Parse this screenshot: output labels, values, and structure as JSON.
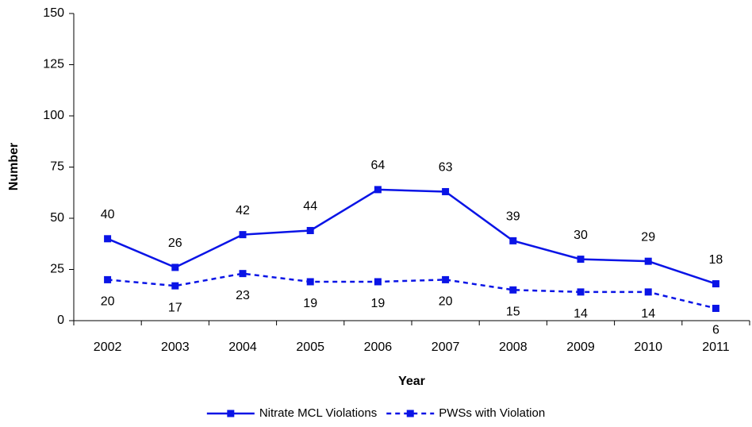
{
  "chart_data": {
    "type": "line",
    "x_label": "Year",
    "y_label": "Number",
    "categories": [
      "2002",
      "2003",
      "2004",
      "2005",
      "2006",
      "2007",
      "2008",
      "2009",
      "2010",
      "2011"
    ],
    "series": [
      {
        "name": "Nitrate MCL Violations",
        "color": "#0a14e6",
        "style": "solid",
        "label_position": "above",
        "values": [
          40,
          26,
          42,
          44,
          64,
          63,
          39,
          30,
          29,
          18
        ]
      },
      {
        "name": "PWSs with Violation",
        "color": "#0a14e6",
        "style": "dashed",
        "label_position": "below",
        "values": [
          20,
          17,
          23,
          19,
          19,
          20,
          15,
          14,
          14,
          6
        ]
      }
    ],
    "ylim": [
      0,
      150
    ],
    "yticks": [
      0,
      25,
      50,
      75,
      100,
      125,
      150
    ],
    "grid": false,
    "legend": "bottom"
  }
}
